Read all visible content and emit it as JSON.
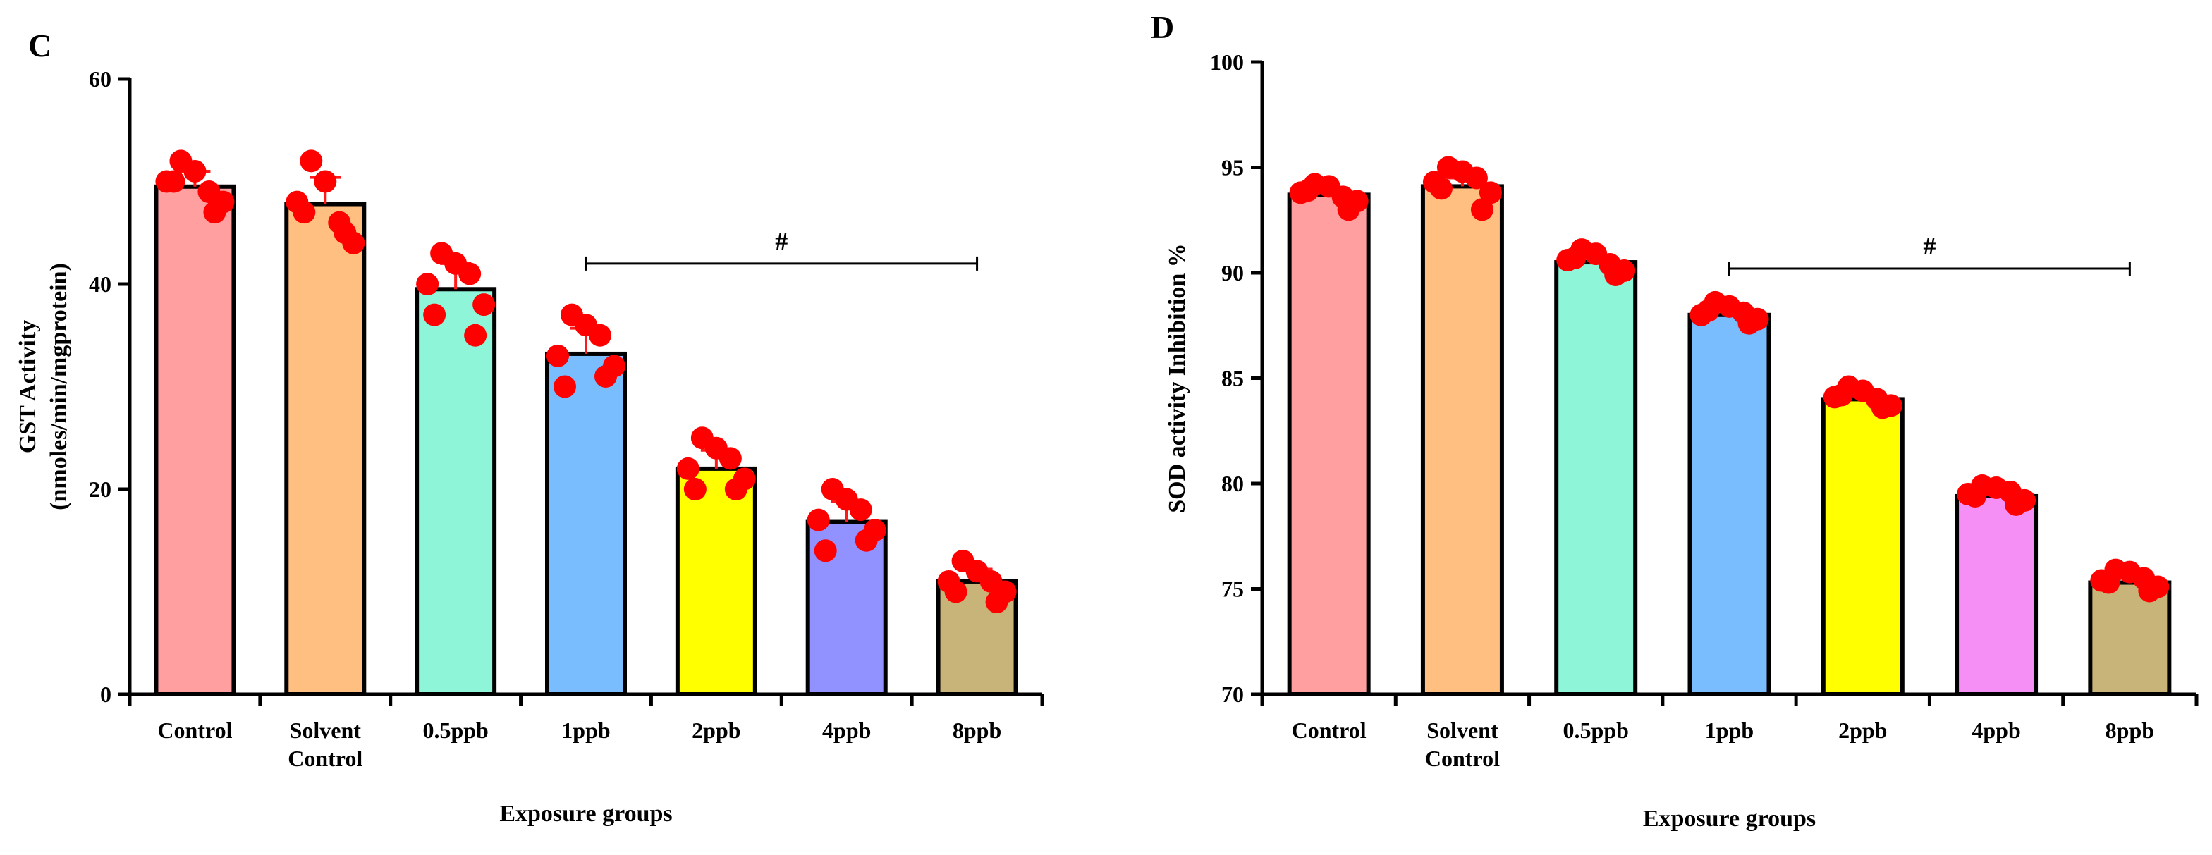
{
  "chart_data": [
    {
      "panel_label": "C",
      "type": "bar",
      "categories": [
        "Control",
        "Solvent Control",
        "0.5ppb",
        "1ppb",
        "2ppb",
        "4ppb",
        "8ppb"
      ],
      "category_lines": [
        [
          "Control"
        ],
        [
          "Solvent",
          "Control"
        ],
        [
          "0.5ppb"
        ],
        [
          "1ppb"
        ],
        [
          "2ppb"
        ],
        [
          "4ppb"
        ],
        [
          "8ppb"
        ]
      ],
      "values": [
        49.5,
        47.8,
        39.5,
        33.2,
        22.0,
        16.8,
        11.0
      ],
      "errors": [
        1.5,
        2.6,
        2.5,
        2.5,
        1.8,
        2.0,
        1.2
      ],
      "points": [
        [
          50,
          52,
          51,
          49,
          48,
          47,
          50
        ],
        [
          48,
          52,
          50,
          46,
          44,
          45,
          47
        ],
        [
          40,
          43,
          42,
          41,
          38,
          35,
          37
        ],
        [
          33,
          37,
          36,
          35,
          32,
          31,
          30
        ],
        [
          22,
          25,
          24,
          23,
          21,
          20,
          20
        ],
        [
          17,
          20,
          19,
          18,
          16,
          15,
          14
        ],
        [
          11,
          13,
          12,
          11,
          10,
          9,
          10
        ]
      ],
      "bar_colors": [
        "#FF9F9F",
        "#FFBF80",
        "#8FF5D9",
        "#7ABDFF",
        "#FFFF00",
        "#9191FF",
        "#C8B478"
      ],
      "point_color": "#FF0000",
      "ylabel": "GST Activity",
      "ylabel2": "(nmoles/min/mgprotein)",
      "xlabel": "Exposure groups",
      "ylim": [
        0,
        60
      ],
      "yticks": [
        0,
        20,
        40,
        60
      ],
      "significance": {
        "label": "#",
        "from_category": 3,
        "to_category": 6,
        "y": 42
      }
    },
    {
      "panel_label": "D",
      "type": "bar",
      "categories": [
        "Control",
        "Solvent Control",
        "0.5ppb",
        "1ppb",
        "2ppb",
        "4ppb",
        "8ppb"
      ],
      "category_lines": [
        [
          "Control"
        ],
        [
          "Solvent",
          "Control"
        ],
        [
          "0.5ppb"
        ],
        [
          "1ppb"
        ],
        [
          "2ppb"
        ],
        [
          "4ppb"
        ],
        [
          "8ppb"
        ]
      ],
      "values": [
        93.7,
        94.1,
        90.5,
        88.0,
        84.0,
        79.4,
        75.3
      ],
      "errors": [
        0.3,
        0.4,
        0.3,
        0.3,
        0.3,
        0.3,
        0.3
      ],
      "points": [
        [
          93.8,
          94.2,
          94.1,
          93.6,
          93.4,
          93.0,
          93.9
        ],
        [
          94.3,
          95.0,
          94.8,
          94.5,
          93.8,
          93.0,
          94.0
        ],
        [
          90.6,
          91.1,
          90.9,
          90.4,
          90.1,
          89.9,
          90.7
        ],
        [
          88.0,
          88.6,
          88.4,
          88.1,
          87.8,
          87.6,
          88.2
        ],
        [
          84.1,
          84.6,
          84.4,
          84.0,
          83.7,
          83.6,
          84.2
        ],
        [
          79.5,
          79.9,
          79.8,
          79.6,
          79.2,
          79.0,
          79.4
        ],
        [
          75.4,
          75.9,
          75.8,
          75.5,
          75.1,
          74.9,
          75.3
        ]
      ],
      "bar_colors": [
        "#FF9F9F",
        "#FFBF80",
        "#8FF5D9",
        "#7ABDFF",
        "#FFFF00",
        "#F58FF5",
        "#C8B478"
      ],
      "point_color": "#FF0000",
      "ylabel": "SOD activity Inhibition %",
      "ylabel2": "",
      "xlabel": "Exposure groups",
      "ylim": [
        70,
        100
      ],
      "yticks": [
        70,
        75,
        80,
        85,
        90,
        95,
        100
      ],
      "significance": {
        "label": "#",
        "from_category": 3,
        "to_category": 6,
        "y": 90.2
      }
    }
  ]
}
